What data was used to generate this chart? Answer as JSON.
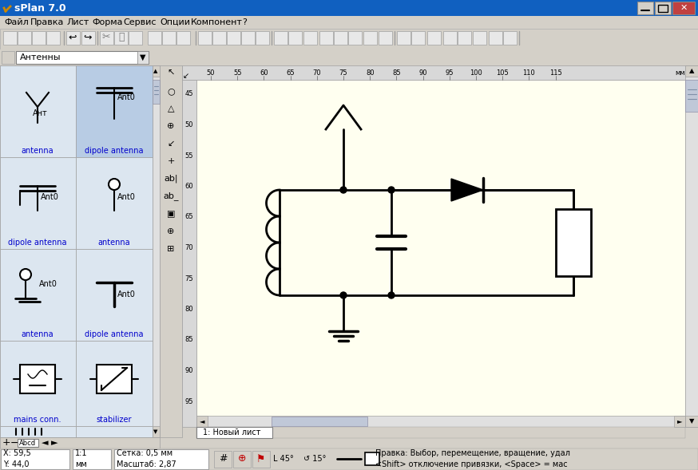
{
  "title": "sPlan 7.0",
  "title_bar_color": "#1060c0",
  "window_bg": "#d4d0c8",
  "canvas_bg": "#fffff0",
  "left_panel_highlight": "#b8cce4",
  "left_panel_bg": "#dce6f0",
  "menu_items": [
    "Файл",
    "Правка",
    "Лист",
    "Форма",
    "Сервис",
    "Опции",
    "Компонент",
    "?"
  ],
  "dropdown_text": "Антенны",
  "statusbar_left": "X: 59,5\nY: 44,0",
  "statusbar_mid1": "1:1\nмм",
  "statusbar_mid2": "Сетка: 0,5 мм\nМасштаб: 2,87",
  "statusbar_right": "Правка: Выбор, перемещение, вращение, удал\n<Shift> отключение привязки, <Space> = мас",
  "tab_text": "1: Новый лист",
  "ruler_numbers_h": [
    50,
    55,
    60,
    65,
    70,
    75,
    80,
    85,
    90,
    95,
    100,
    105,
    110,
    115
  ],
  "ruler_numbers_v": [
    45,
    50,
    55,
    60,
    65,
    70,
    75,
    80,
    85,
    90,
    95
  ],
  "ruler_unit": "мм"
}
